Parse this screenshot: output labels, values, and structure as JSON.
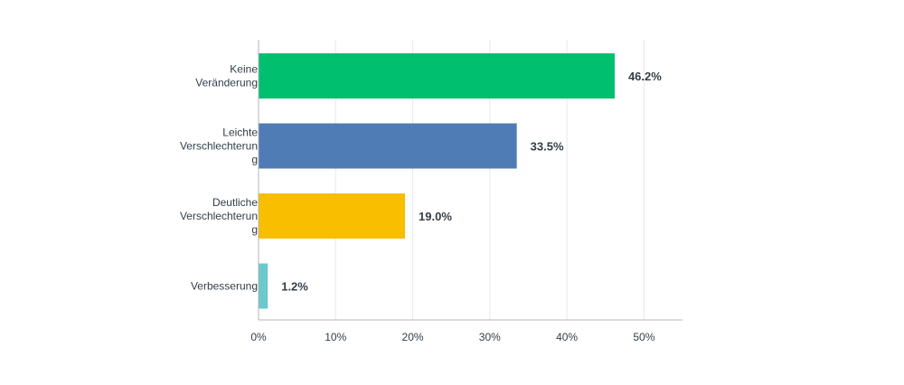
{
  "chart_data": {
    "type": "bar",
    "orientation": "horizontal",
    "categories": [
      "Keine Veränderung",
      "Leichte Verschlechterung",
      "Deutliche Verschlechterung",
      "Verbesserung"
    ],
    "category_label_lines": [
      [
        "Keine",
        "Veränderung"
      ],
      [
        "Leichte",
        "Verschlechterun",
        "g"
      ],
      [
        "Deutliche",
        "Verschlechterun",
        "g"
      ],
      [
        "Verbesserung"
      ]
    ],
    "values": [
      46.2,
      33.5,
      19.0,
      1.2
    ],
    "data_labels": [
      "46.2%",
      "33.5%",
      "19.0%",
      "1.2%"
    ],
    "colors": [
      "#00bf6f",
      "#507cb6",
      "#f9be00",
      "#6bc8cd"
    ],
    "xlim": [
      0,
      55
    ],
    "xticks": [
      0,
      10,
      20,
      30,
      40,
      50
    ],
    "xtick_labels": [
      "0%",
      "10%",
      "20%",
      "30%",
      "40%",
      "50%"
    ],
    "grid": true,
    "grid_color": "#e8e8e8",
    "axis_color": "#b0b4b8",
    "title": "",
    "xlabel": "",
    "ylabel": ""
  }
}
